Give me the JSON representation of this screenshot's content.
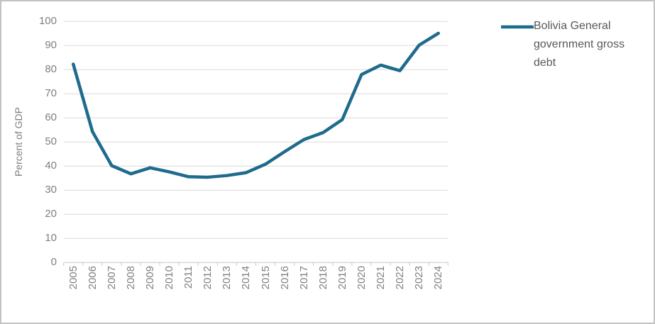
{
  "colors": {
    "line": "#1f6b8d",
    "gridline": "#d9d9d9",
    "axis_line": "#c6c6c6",
    "tick_mark": "#c6c6c6",
    "tick_label": "#7f7f7f",
    "legend_text": "#595959",
    "frame_border": "#c3c3c3",
    "background": "#ffffff"
  },
  "legend": {
    "label": "Bolivia General government gross debt",
    "position": "right"
  },
  "chart_data": {
    "type": "line",
    "title": "",
    "xlabel": "",
    "ylabel": "Percent of GDP",
    "ylim": [
      0,
      100
    ],
    "ytick_step": 10,
    "yticks": [
      0,
      10,
      20,
      30,
      40,
      50,
      60,
      70,
      80,
      90,
      100
    ],
    "grid": "horizontal",
    "legend_position": "right",
    "categories": [
      "2005",
      "2006",
      "2007",
      "2008",
      "2009",
      "2010",
      "2011",
      "2012",
      "2013",
      "2014",
      "2015",
      "2016",
      "2017",
      "2018",
      "2019",
      "2020",
      "2021",
      "2022",
      "2023",
      "2024"
    ],
    "series": [
      {
        "name": "Bolivia General government gross debt",
        "color": "#1f6b8d",
        "values": [
          82.3,
          54.3,
          40.2,
          36.8,
          39.3,
          37.6,
          35.6,
          35.4,
          36.1,
          37.3,
          40.8,
          46.0,
          51.0,
          53.9,
          59.3,
          78.0,
          81.9,
          79.6,
          90.2,
          95.1
        ]
      }
    ]
  }
}
